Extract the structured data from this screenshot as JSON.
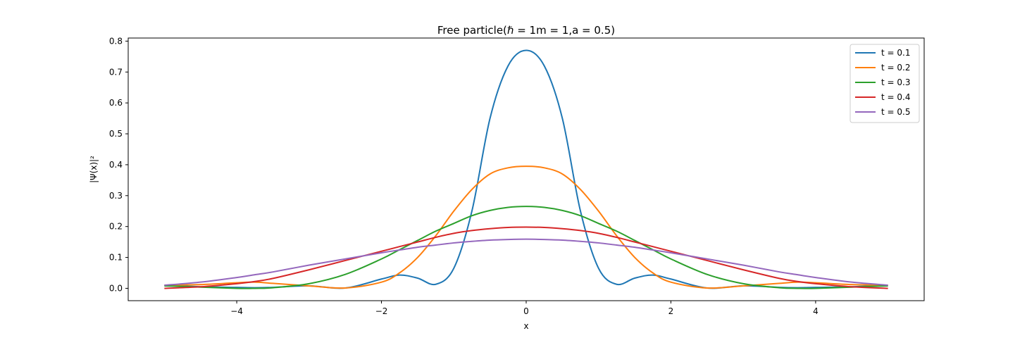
{
  "chart_data": {
    "type": "line",
    "title": "Free particle(ℏ = 1m = 1,a = 0.5)",
    "xlabel": "x",
    "ylabel": "|Ψ(x)|²",
    "xlim": [
      -5.5,
      5.5
    ],
    "ylim": [
      -0.04,
      0.81
    ],
    "xticks": [
      -4,
      -2,
      0,
      2,
      4
    ],
    "xtick_labels": [
      "−4",
      "−2",
      "0",
      "2",
      "4"
    ],
    "yticks": [
      0.0,
      0.1,
      0.2,
      0.3,
      0.4,
      0.5,
      0.6,
      0.7,
      0.8
    ],
    "ytick_labels": [
      "0.0",
      "0.1",
      "0.2",
      "0.3",
      "0.4",
      "0.5",
      "0.6",
      "0.7",
      "0.8"
    ],
    "grid": false,
    "legend_position": "top-right",
    "x": [
      -5.0,
      -4.5,
      -4.0,
      -3.75,
      -3.5,
      -3.0,
      -2.5,
      -2.0,
      -1.75,
      -1.5,
      -1.25,
      -1.0,
      -0.75,
      -0.5,
      -0.25,
      0.0,
      0.25,
      0.5,
      0.75,
      1.0,
      1.25,
      1.5,
      1.75,
      2.0,
      2.5,
      3.0,
      3.5,
      3.75,
      4.0,
      4.5,
      5.0
    ],
    "series": [
      {
        "name": "t = 0.1",
        "color": "#1f77b4",
        "values": [
          0.01,
          0.005,
          0.003,
          0.002,
          0.003,
          0.008,
          0.001,
          0.03,
          0.043,
          0.033,
          0.013,
          0.065,
          0.25,
          0.55,
          0.72,
          0.77,
          0.72,
          0.55,
          0.25,
          0.065,
          0.013,
          0.033,
          0.043,
          0.03,
          0.001,
          0.008,
          0.003,
          0.002,
          0.003,
          0.005,
          0.01
        ]
      },
      {
        "name": "t = 0.2",
        "color": "#ff7f0e",
        "values": [
          0.01,
          0.012,
          0.018,
          0.02,
          0.016,
          0.008,
          0.001,
          0.02,
          0.05,
          0.1,
          0.17,
          0.25,
          0.32,
          0.37,
          0.39,
          0.395,
          0.39,
          0.37,
          0.32,
          0.25,
          0.17,
          0.1,
          0.05,
          0.02,
          0.001,
          0.008,
          0.016,
          0.02,
          0.018,
          0.012,
          0.01
        ]
      },
      {
        "name": "t = 0.3",
        "color": "#2ca02c",
        "values": [
          0.008,
          0.004,
          0.0,
          0.0,
          0.002,
          0.015,
          0.045,
          0.095,
          0.125,
          0.155,
          0.185,
          0.21,
          0.235,
          0.252,
          0.262,
          0.265,
          0.262,
          0.252,
          0.235,
          0.21,
          0.185,
          0.155,
          0.125,
          0.095,
          0.045,
          0.015,
          0.002,
          0.0,
          0.0,
          0.004,
          0.008
        ]
      },
      {
        "name": "t = 0.4",
        "color": "#d62728",
        "values": [
          0.0,
          0.005,
          0.015,
          0.022,
          0.032,
          0.06,
          0.09,
          0.12,
          0.135,
          0.15,
          0.165,
          0.178,
          0.187,
          0.193,
          0.197,
          0.198,
          0.197,
          0.193,
          0.187,
          0.178,
          0.165,
          0.15,
          0.135,
          0.12,
          0.09,
          0.06,
          0.032,
          0.022,
          0.015,
          0.005,
          0.0
        ]
      },
      {
        "name": "t = 0.5",
        "color": "#9467bd",
        "values": [
          0.01,
          0.02,
          0.035,
          0.044,
          0.053,
          0.075,
          0.095,
          0.115,
          0.124,
          0.133,
          0.14,
          0.147,
          0.152,
          0.156,
          0.158,
          0.159,
          0.158,
          0.156,
          0.152,
          0.147,
          0.14,
          0.133,
          0.124,
          0.115,
          0.095,
          0.075,
          0.053,
          0.044,
          0.035,
          0.02,
          0.01
        ]
      }
    ]
  }
}
